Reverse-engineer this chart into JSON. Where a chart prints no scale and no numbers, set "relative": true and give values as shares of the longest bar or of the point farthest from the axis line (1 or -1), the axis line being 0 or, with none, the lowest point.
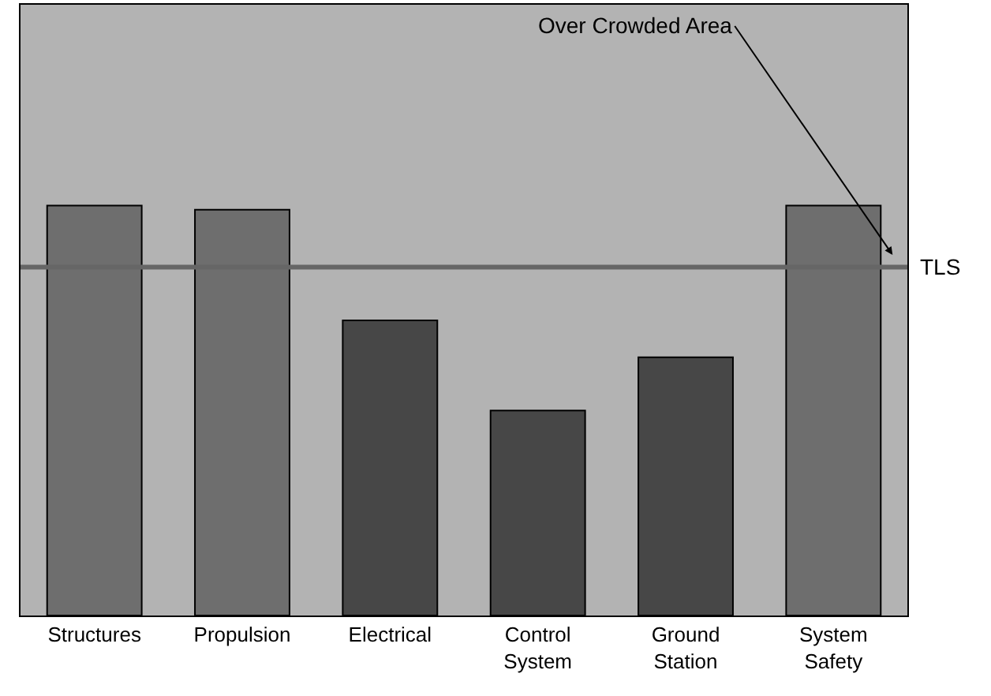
{
  "chart_data": {
    "type": "bar",
    "relative": true,
    "categories": [
      "Structures",
      "Propulsion",
      "Electrical",
      "Control\nSystem",
      "Ground\nStation",
      "System\nSafety"
    ],
    "values": [
      1,
      0.99,
      0.72,
      0.5,
      0.63,
      1
    ],
    "colors": [
      "#6e6e6e",
      "#6e6e6e",
      "#474747",
      "#474747",
      "#474747",
      "#6e6e6e"
    ],
    "ref_lines": [
      {
        "axis": "y",
        "value": 0.85,
        "label": "TLS",
        "color": "#666666"
      }
    ],
    "annotations": [
      "Over Crowded Area"
    ],
    "grid": false,
    "legend": false
  }
}
